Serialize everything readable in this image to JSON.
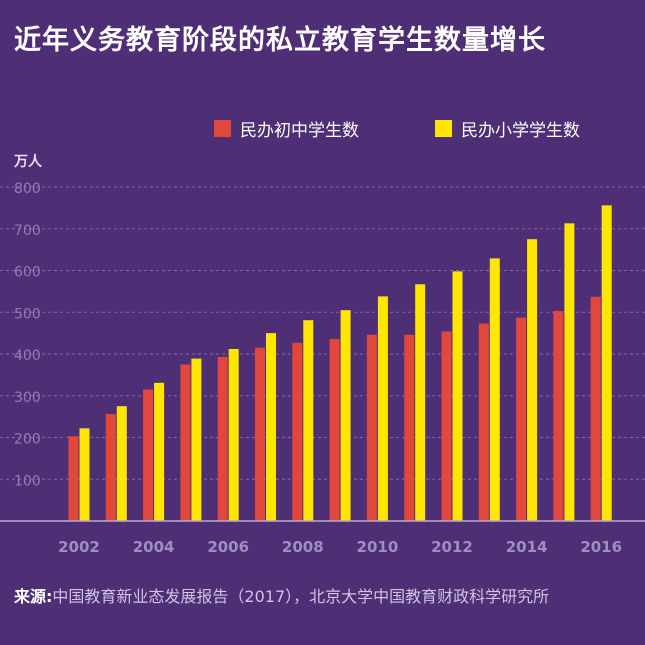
{
  "title": "近年义务教育阶段的私立教育学生数量增长",
  "source": {
    "label": "来源:",
    "text": "中国教育新业态发展报告（2017），北京大学中国教育财政科学研究所"
  },
  "colors": {
    "background": "#4e2f76",
    "middle_school": "#e2473b",
    "primary_school": "#ffe600"
  },
  "chart_data": {
    "type": "bar",
    "title": "近年义务教育阶段的私立教育学生数量增长",
    "ylabel": "万人",
    "xlabel": "",
    "ylim": [
      0,
      800
    ],
    "grid": true,
    "legend_position": "top-right",
    "yticks": [
      100,
      200,
      300,
      400,
      500,
      600,
      700,
      800
    ],
    "xtick_labels": [
      "2002",
      "2004",
      "2006",
      "2008",
      "2010",
      "2012",
      "2014",
      "2016"
    ],
    "categories": [
      "2002",
      "2003",
      "2004",
      "2005",
      "2006",
      "2007",
      "2008",
      "2009",
      "2010",
      "2011",
      "2012",
      "2013",
      "2014",
      "2015",
      "2016"
    ],
    "series": [
      {
        "name": "民办初中学生数",
        "color": "#e2473b",
        "values": [
          203,
          256,
          315,
          375,
          393,
          415,
          427,
          436,
          446,
          446,
          454,
          473,
          487,
          503,
          537
        ]
      },
      {
        "name": "民办小学学生数",
        "color": "#ffe600",
        "values": [
          222,
          275,
          331,
          389,
          412,
          450,
          481,
          505,
          538,
          567,
          598,
          629,
          675,
          713,
          756
        ]
      }
    ]
  }
}
